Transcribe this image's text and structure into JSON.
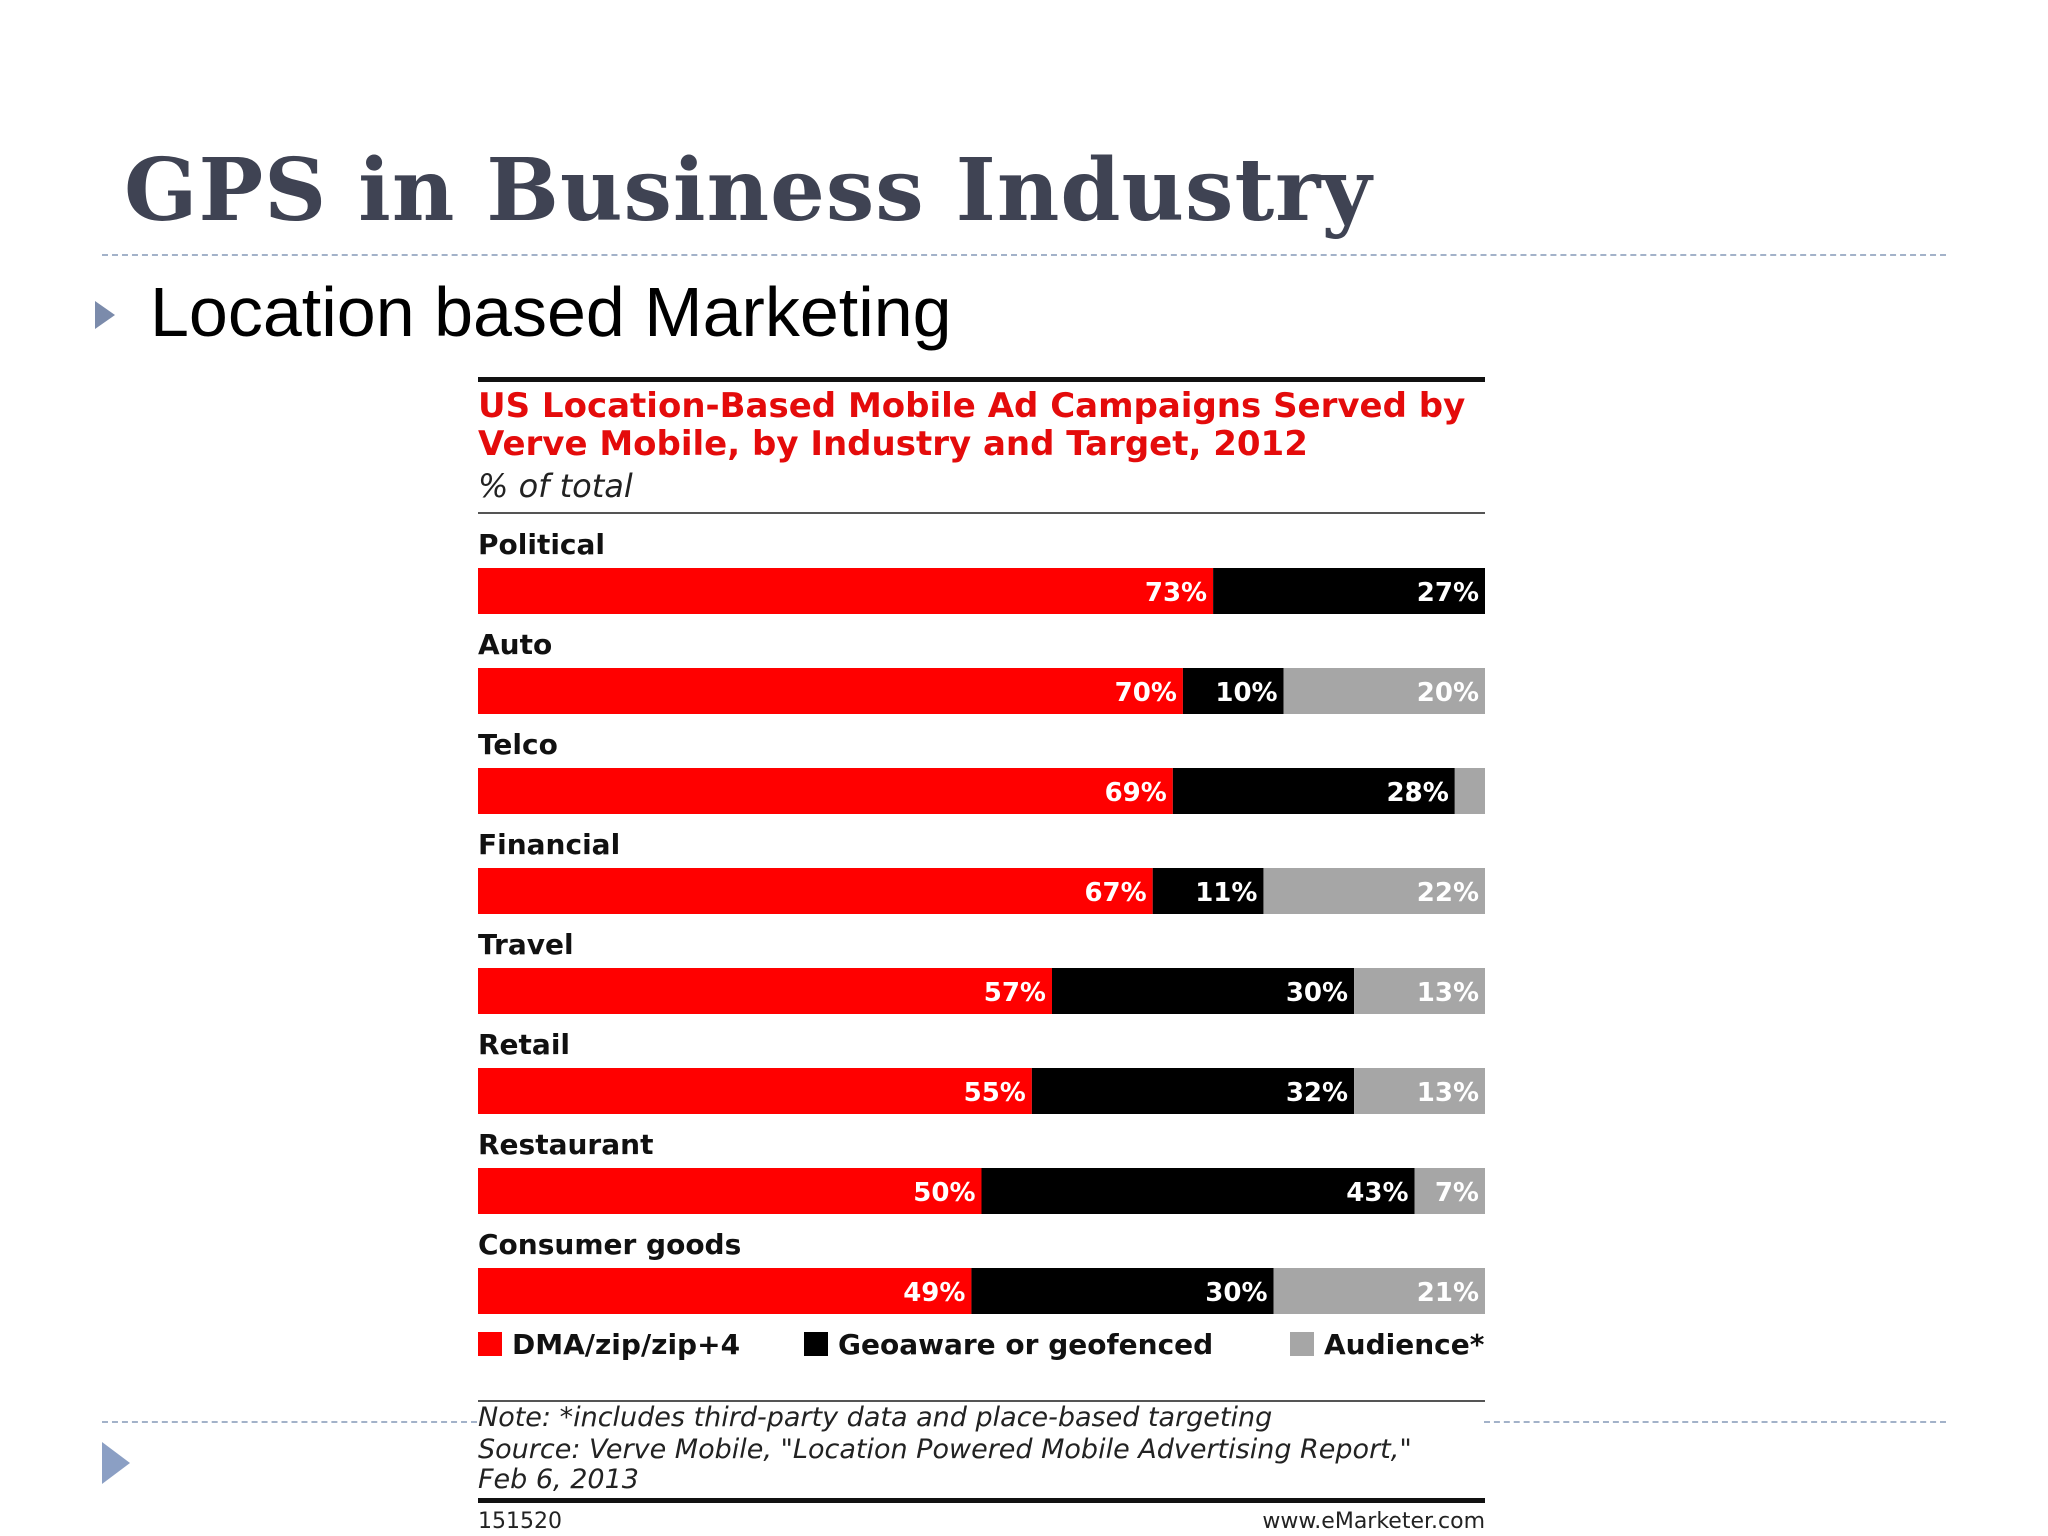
{
  "slide": {
    "title": "GPS in Business Industry",
    "bullet": "Location based Marketing"
  },
  "chart_data": {
    "type": "bar",
    "orientation": "horizontal",
    "stacked": true,
    "title_lines": [
      "US Location-Based Mobile Ad Campaigns Served by",
      "Verve Mobile, by Industry and Target, 2012"
    ],
    "subtitle": "% of total",
    "categories": [
      "Political",
      "Auto",
      "Telco",
      "Financial",
      "Travel",
      "Retail",
      "Restaurant",
      "Consumer goods"
    ],
    "series": [
      {
        "name": "DMA/zip/zip+4",
        "color": "#ff0000",
        "values": [
          73,
          70,
          69,
          67,
          57,
          55,
          50,
          49
        ]
      },
      {
        "name": "Geoaware or geofenced",
        "color": "#000000",
        "values": [
          27,
          10,
          28,
          11,
          30,
          32,
          43,
          30
        ]
      },
      {
        "name": "Audience*",
        "color": "#a6a6a6",
        "values": [
          0,
          20,
          3,
          22,
          13,
          13,
          7,
          21
        ]
      }
    ],
    "data_labels": [
      [
        "73%",
        "27%",
        ""
      ],
      [
        "70%",
        "10%",
        "20%"
      ],
      [
        "69%",
        "28%",
        "3%"
      ],
      [
        "67%",
        "11%",
        "22%"
      ],
      [
        "57%",
        "30%",
        "13%"
      ],
      [
        "55%",
        "32%",
        "13%"
      ],
      [
        "50%",
        "43%",
        "7%"
      ],
      [
        "49%",
        "30%",
        "21%"
      ]
    ],
    "xlim": [
      0,
      100
    ],
    "grid": false,
    "legend_position": "bottom",
    "note": "Note: *includes third-party data and place-based targeting",
    "source_lines": [
      "Source: Verve Mobile, \"Location Powered Mobile Advertising Report,\"",
      "Feb 6, 2013"
    ],
    "chart_id": "151520",
    "site": "www.eMarketer.com"
  }
}
